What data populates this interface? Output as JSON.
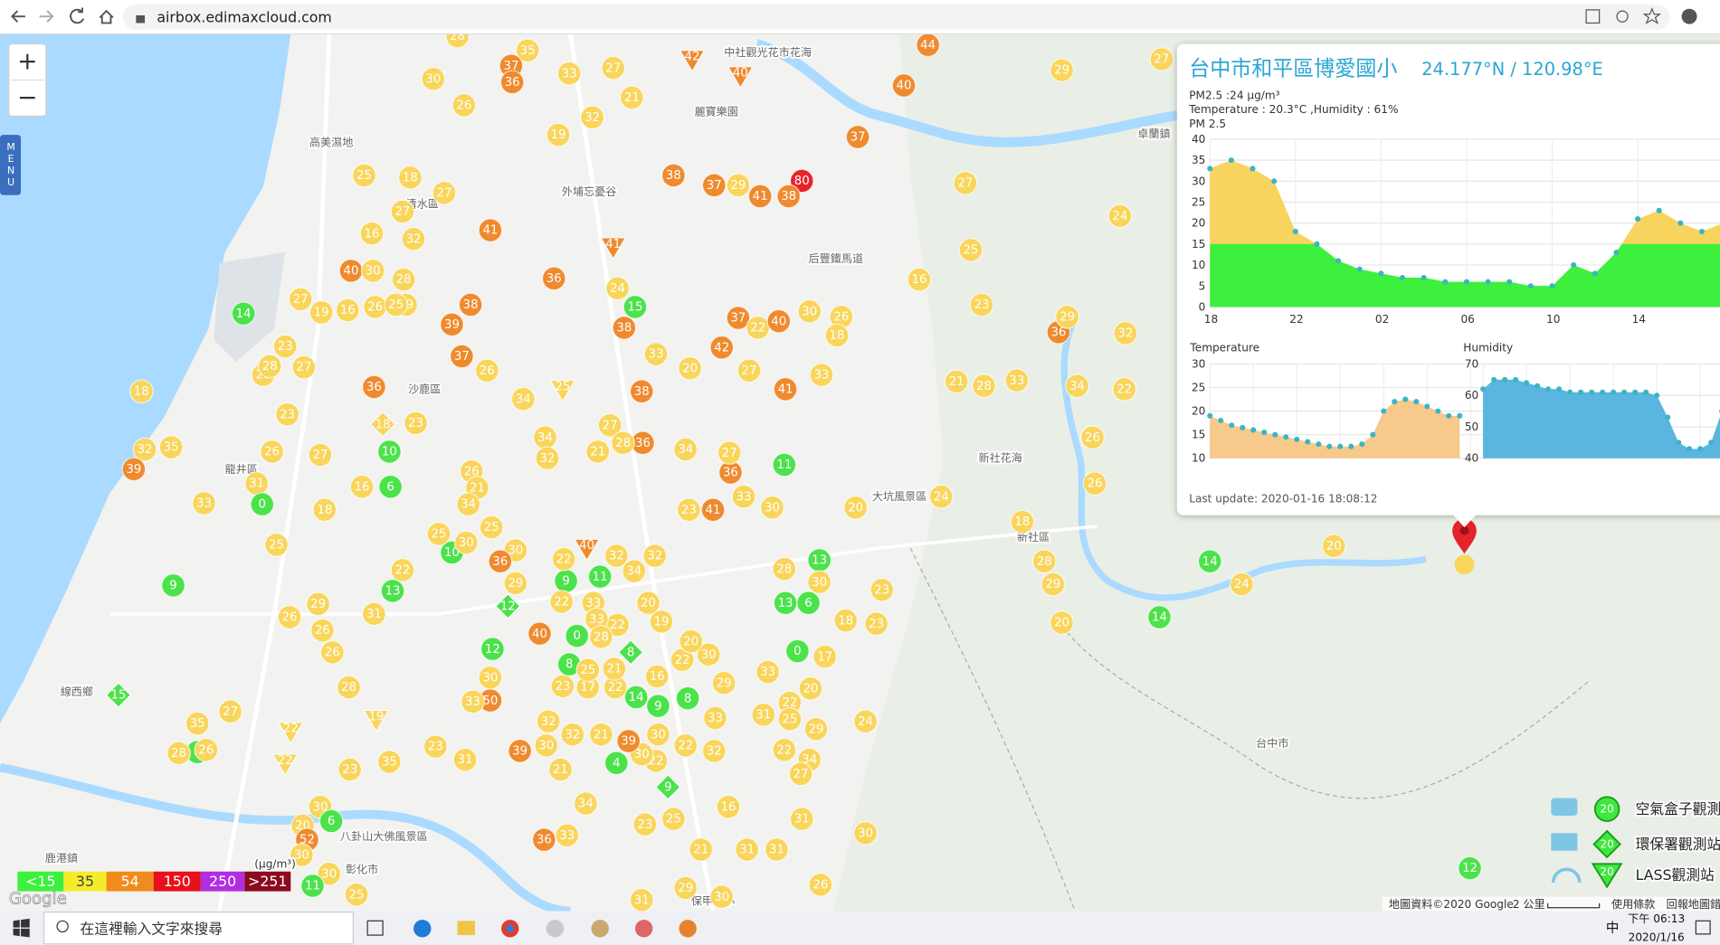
{
  "browser": {
    "url": "airbox.edimaxcloud.com"
  },
  "map_controls": {
    "zoom_in": "+",
    "zoom_out": "−",
    "menu": "MENU"
  },
  "popup": {
    "title": "台中市和平區博愛國小",
    "coords": "24.177°N / 120.98°E",
    "pm_line": "PM2.5 :24 μg/m³",
    "env_line": "Temperature : 20.3°C ,Humidity : 61%",
    "pm_chart": {
      "title": "PM 2.5",
      "yticks": [
        0,
        5,
        10,
        15,
        20,
        25,
        30,
        35,
        40
      ],
      "xticks": [
        "18",
        "22",
        "02",
        "06",
        "10",
        "14"
      ],
      "values": [
        33,
        35,
        33,
        30,
        18,
        15,
        11,
        9,
        8,
        7,
        7,
        6,
        6,
        6,
        6,
        5,
        5,
        10,
        8,
        13,
        21,
        23,
        20,
        18,
        20
      ],
      "color": "#f7d45d"
    },
    "temp_chart": {
      "title": "Temperature",
      "yticks": [
        10,
        15,
        20,
        25,
        30
      ],
      "values": [
        19,
        18,
        17,
        16.5,
        16,
        15.5,
        15,
        14.5,
        14,
        13.5,
        13,
        12.5,
        12.5,
        12.5,
        13,
        15,
        20,
        22,
        22.5,
        22,
        21,
        20,
        19,
        19
      ],
      "color": "#f7c98a"
    },
    "humidity_chart": {
      "title": "Humidity",
      "yticks": [
        40,
        50,
        60,
        70
      ],
      "values": [
        62,
        65,
        65,
        65,
        64,
        63,
        62,
        62,
        61,
        61,
        61,
        61,
        61,
        61,
        61,
        61,
        60,
        53,
        45,
        43,
        43,
        45,
        55,
        58
      ],
      "color": "#5ab6de"
    },
    "last_update": "Last update: 2020-01-16 18:08:12"
  },
  "markers": [
    28,
    35,
    37,
    36,
    33,
    27,
    21,
    32,
    19,
    30,
    26,
    25,
    18,
    27,
    27,
    32,
    16,
    41,
    40,
    30,
    28,
    29,
    19,
    27,
    14,
    23,
    26,
    18,
    36,
    18,
    23,
    23,
    10,
    26,
    27,
    32,
    35,
    39,
    31,
    33,
    0,
    16,
    6,
    18,
    25,
    9,
    26,
    29,
    26,
    26,
    31,
    13,
    10,
    25,
    22,
    12,
    50,
    40,
    12,
    9,
    11,
    22,
    40,
    32,
    22,
    33,
    34,
    32,
    23,
    17,
    22,
    39,
    21,
    4,
    34,
    36,
    33,
    9,
    23,
    25,
    21,
    16,
    31,
    31,
    30,
    31,
    26,
    29,
    31,
    30,
    11,
    33,
    30,
    41,
    23,
    36,
    27,
    34,
    38,
    38,
    15,
    24,
    36,
    38,
    39,
    37,
    26,
    34,
    34,
    32,
    25,
    21,
    27,
    36,
    28,
    20,
    33,
    42,
    37,
    22,
    40,
    41,
    27,
    33,
    30,
    26,
    18,
    80,
    38,
    41,
    29,
    37,
    38,
    37,
    40,
    44,
    27,
    29,
    27,
    24,
    25,
    16,
    23,
    36,
    32,
    29,
    21,
    28,
    33,
    34,
    22,
    26,
    26,
    24,
    20,
    18,
    28,
    29,
    20,
    14,
    24,
    14,
    20,
    12,
    13,
    30,
    28,
    13,
    6,
    0,
    17,
    18,
    23,
    23,
    20,
    22,
    25,
    29,
    31,
    24,
    34,
    22,
    27,
    33,
    29,
    33,
    8,
    9,
    14,
    16,
    22,
    30,
    20,
    19,
    20,
    22,
    33,
    0,
    28,
    8,
    8,
    25,
    21,
    30,
    22,
    32,
    22,
    30,
    39,
    21,
    32,
    30,
    32,
    30,
    33,
    35,
    31,
    23,
    19,
    28,
    23,
    30,
    6,
    20,
    52,
    30,
    30,
    11,
    25,
    27,
    35,
    8,
    26,
    28,
    15,
    22,
    22,
    27,
    28,
    16,
    26,
    25,
    26,
    21,
    34,
    25,
    30,
    36,
    29,
    30,
    42,
    40,
    41
  ],
  "place_labels": [
    "高美濕地",
    "清水區",
    "沙鹿區",
    "龍井區",
    "外埔忘憂谷",
    "麗寶樂園",
    "中社觀光花市花海",
    "后豐鐵馬道",
    "卓蘭鎮",
    "大坑風景區",
    "新社花海",
    "新社區",
    "線西鄉",
    "鹿港鎮",
    "彰化市",
    "八卦山大佛風景區",
    "台中市",
    "保甲國小"
  ],
  "pm_legend": {
    "unit": "(μg/m³)",
    "levels": [
      "<15",
      "35",
      "54",
      "150",
      "250",
      ">251"
    ],
    "colors": [
      "#3ef03e",
      "#f4ec2a",
      "#f08c1c",
      "#e8101c",
      "#b12ee0",
      "#8c0a1e"
    ],
    "marker_colors": [
      "#4be24b",
      "#f9d55b",
      "#ef8a2e",
      "#e8232b",
      "#b12ee0",
      "#8c0a1e"
    ]
  },
  "station_legend": [
    {
      "icon": "20",
      "label": "空氣盒子觀測站"
    },
    {
      "icon": "20",
      "label": "環保署觀測站"
    },
    {
      "icon": "20",
      "label": "LASS觀測站"
    }
  ],
  "attribution": {
    "logo": "Google",
    "data": "地圖資料©2020 Google",
    "scale": "2 公里",
    "terms": "使用條款",
    "report": "回報地圖錯誤"
  },
  "taskbar": {
    "search": "在這裡輸入文字來搜尋",
    "ime": "中",
    "time": "下午 06:13",
    "date": "2020/1/16"
  }
}
